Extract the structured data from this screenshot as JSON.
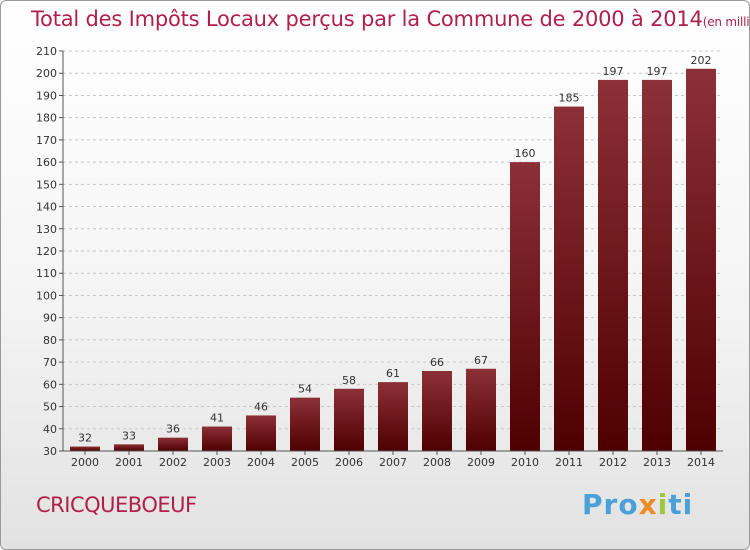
{
  "title": "Total des Impôts Locaux perçus par la Commune de 2000 à 2014",
  "title_unit": "(en milliers d'€)",
  "commune": "CRICQUEBOEUF",
  "logo": {
    "parts": [
      "Pro",
      "x",
      "i",
      "ti"
    ]
  },
  "colors": {
    "bar_top": "#8c3037",
    "bar_bottom": "#4e0000",
    "title": "#b0204b"
  },
  "chart_data": {
    "type": "bar",
    "title": "Total des Impôts Locaux perçus par la Commune de 2000 à 2014",
    "categories": [
      "2000",
      "2001",
      "2002",
      "2003",
      "2004",
      "2005",
      "2006",
      "2007",
      "2008",
      "2009",
      "2010",
      "2011",
      "2012",
      "2013",
      "2014"
    ],
    "values": [
      32,
      33,
      36,
      41,
      46,
      54,
      58,
      61,
      66,
      67,
      160,
      185,
      197,
      197,
      202
    ],
    "ylim": [
      30,
      210
    ],
    "yticks": [
      30,
      40,
      50,
      60,
      70,
      80,
      90,
      100,
      110,
      120,
      130,
      140,
      150,
      160,
      170,
      180,
      190,
      200,
      210
    ],
    "grid": "horizontal dashed"
  }
}
